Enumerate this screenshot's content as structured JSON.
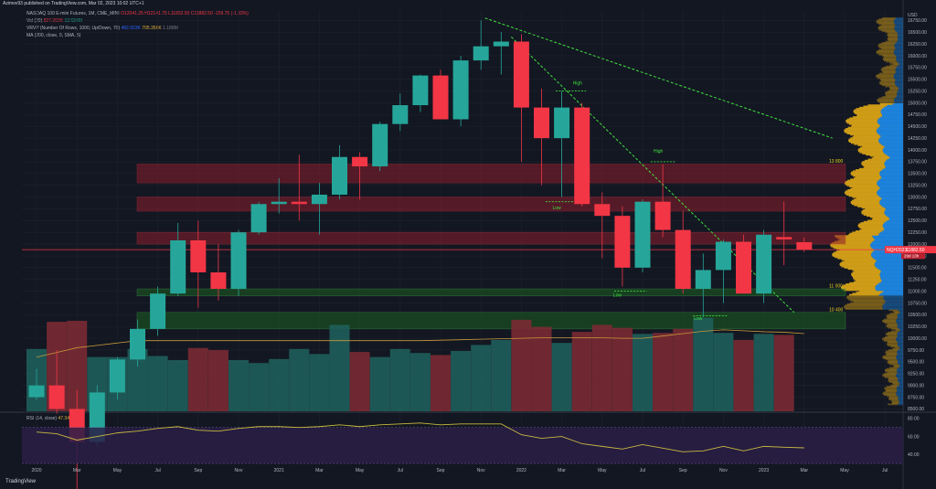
{
  "header": {
    "publisher": "Azimov93 published on TradingView.com, Mar 02, 2023 10:02 UTC+1"
  },
  "legend": {
    "symbol": "NASDAQ 100 E-mini Futures, 1M, CME_MINI",
    "ohlc": {
      "o": "O12041.25",
      "h": "H12141.75",
      "l": "L11832.50",
      "c": "C11882.50",
      "chg": "-159.75 (-1.33%)"
    },
    "vol": {
      "label": "Vol (20)",
      "v1": "827.269K",
      "v2": "12.634M"
    },
    "vrvp": {
      "label": "VRVP (Number Of Rows, 1000, Up/Down, 70)",
      "v1": "482.823K",
      "v2": "705.356K",
      "v3": "1.188M"
    },
    "ma": {
      "label": "MA (200, close, 0, SMA, 5)"
    }
  },
  "rsi": {
    "label": "RSI (14, close)",
    "value": "47.34"
  },
  "price_tag": {
    "symbol": "NQH2023",
    "price": "11882.50",
    "countdown": "29d 13h"
  },
  "brand": {
    "logo_text": "TradingView"
  },
  "colors": {
    "up": "#26a69a",
    "down": "#f23645",
    "zone_red": "#8b1d2c",
    "zone_green": "#1b5e20",
    "trend": "#3ee03e",
    "ma": "#c89a3a",
    "rsi": "#c8b840",
    "profile_up": "#1e88e5",
    "profile_down": "#d4a017"
  },
  "chart_data": [
    {
      "type": "candlestick",
      "title": "NASDAQ 100 E-mini Futures, 1M, CME_MINI",
      "y_ticks": [
        8500,
        8750,
        9000,
        9250,
        9500,
        9750,
        10000,
        10250,
        10500,
        10750,
        11000,
        11250,
        11500,
        11750,
        12000,
        12250,
        12500,
        12750,
        13000,
        13250,
        13500,
        13750,
        14000,
        14250,
        14500,
        14750,
        15000,
        15250,
        15500,
        15750,
        16000,
        16250,
        16500,
        16750
      ],
      "y_unit": "USD",
      "ylim": [
        8450,
        16950
      ],
      "x_ticks": [
        "2020",
        "Mar",
        "May",
        "Jul",
        "Sep",
        "Nov",
        "2021",
        "Mar",
        "May",
        "Jul",
        "Sep",
        "Nov",
        "2022",
        "Mar",
        "May",
        "Jul",
        "Sep",
        "Nov",
        "2023",
        "Mar",
        "May",
        "Jul"
      ],
      "candles": [
        {
          "date": "2020-01",
          "o": 8750,
          "h": 9350,
          "l": 8700,
          "c": 9000
        },
        {
          "date": "2020-02",
          "o": 9000,
          "h": 9750,
          "l": 8400,
          "c": 8500
        },
        {
          "date": "2020-03",
          "o": 8500,
          "h": 8900,
          "l": 6600,
          "c": 7800
        },
        {
          "date": "2020-04",
          "o": 7800,
          "h": 9000,
          "l": 7700,
          "c": 8850
        },
        {
          "date": "2020-05",
          "o": 8850,
          "h": 9600,
          "l": 8700,
          "c": 9550
        },
        {
          "date": "2020-06",
          "o": 9550,
          "h": 10400,
          "l": 9400,
          "c": 10200
        },
        {
          "date": "2020-07",
          "o": 10200,
          "h": 11100,
          "l": 10050,
          "c": 10950
        },
        {
          "date": "2020-08",
          "o": 10950,
          "h": 12450,
          "l": 10900,
          "c": 12080
        },
        {
          "date": "2020-09",
          "o": 12080,
          "h": 12500,
          "l": 10650,
          "c": 11400
        },
        {
          "date": "2020-10",
          "o": 11400,
          "h": 12000,
          "l": 10800,
          "c": 11050
        },
        {
          "date": "2020-11",
          "o": 11050,
          "h": 12300,
          "l": 10900,
          "c": 12250
        },
        {
          "date": "2020-12",
          "o": 12250,
          "h": 12900,
          "l": 12200,
          "c": 12850
        },
        {
          "date": "2021-01",
          "o": 12850,
          "h": 13400,
          "l": 12650,
          "c": 12900
        },
        {
          "date": "2021-02",
          "o": 12900,
          "h": 13900,
          "l": 12500,
          "c": 12850
        },
        {
          "date": "2021-03",
          "o": 12850,
          "h": 13300,
          "l": 12200,
          "c": 13050
        },
        {
          "date": "2021-04",
          "o": 13050,
          "h": 14100,
          "l": 12950,
          "c": 13850
        },
        {
          "date": "2021-05",
          "o": 13850,
          "h": 13950,
          "l": 12950,
          "c": 13650
        },
        {
          "date": "2021-06",
          "o": 13650,
          "h": 14600,
          "l": 13550,
          "c": 14550
        },
        {
          "date": "2021-07",
          "o": 14550,
          "h": 15200,
          "l": 14400,
          "c": 14950
        },
        {
          "date": "2021-08",
          "o": 14950,
          "h": 15600,
          "l": 14800,
          "c": 15580
        },
        {
          "date": "2021-09",
          "o": 15580,
          "h": 15700,
          "l": 14650,
          "c": 14650
        },
        {
          "date": "2021-10",
          "o": 14650,
          "h": 16000,
          "l": 14500,
          "c": 15900
        },
        {
          "date": "2021-11",
          "o": 15900,
          "h": 16750,
          "l": 15700,
          "c": 16200
        },
        {
          "date": "2021-12",
          "o": 16200,
          "h": 16500,
          "l": 15600,
          "c": 16300
        },
        {
          "date": "2022-01",
          "o": 16300,
          "h": 16450,
          "l": 13750,
          "c": 14900
        },
        {
          "date": "2022-02",
          "o": 14900,
          "h": 15300,
          "l": 13250,
          "c": 14250
        },
        {
          "date": "2022-03",
          "o": 14250,
          "h": 15250,
          "l": 13000,
          "c": 14900
        },
        {
          "date": "2022-04",
          "o": 14900,
          "h": 15000,
          "l": 12800,
          "c": 12850
        },
        {
          "date": "2022-05",
          "o": 12850,
          "h": 13100,
          "l": 11700,
          "c": 12600
        },
        {
          "date": "2022-06",
          "o": 12600,
          "h": 12800,
          "l": 11100,
          "c": 11500
        },
        {
          "date": "2022-07",
          "o": 11500,
          "h": 12950,
          "l": 11400,
          "c": 12900
        },
        {
          "date": "2022-08",
          "o": 12900,
          "h": 13700,
          "l": 12150,
          "c": 12300
        },
        {
          "date": "2022-09",
          "o": 12300,
          "h": 12700,
          "l": 10950,
          "c": 11050
        },
        {
          "date": "2022-10",
          "o": 11050,
          "h": 11800,
          "l": 10450,
          "c": 11450
        },
        {
          "date": "2022-11",
          "o": 11450,
          "h": 12100,
          "l": 10750,
          "c": 12050
        },
        {
          "date": "2022-12",
          "o": 12050,
          "h": 12200,
          "l": 10950,
          "c": 10950
        },
        {
          "date": "2023-01",
          "o": 10950,
          "h": 12300,
          "l": 10750,
          "c": 12200
        },
        {
          "date": "2023-02",
          "o": 12150,
          "h": 12900,
          "l": 11550,
          "c": 12100
        },
        {
          "date": "2023-03",
          "o": 12041.25,
          "h": 12141.75,
          "l": 11832.5,
          "c": 11882.5
        }
      ],
      "zones": [
        {
          "top": 13700,
          "bottom": 13300,
          "color": "red",
          "label": "13 800"
        },
        {
          "top": 13000,
          "bottom": 12700,
          "color": "red",
          "label": ""
        },
        {
          "top": 12250,
          "bottom": 12000,
          "color": "red",
          "label": ""
        },
        {
          "top": 11050,
          "bottom": 10900,
          "color": "green",
          "label": "11 000"
        },
        {
          "top": 10550,
          "bottom": 10200,
          "color": "green",
          "label": "10 400"
        }
      ],
      "annotations": [
        {
          "text": "High",
          "date": "2022-03",
          "price": 15350
        },
        {
          "text": "Low",
          "date": "2022-02",
          "price": 12700
        },
        {
          "text": "High",
          "date": "2022-07",
          "price": 13900
        },
        {
          "text": "Low",
          "date": "2022-05",
          "price": 10850
        },
        {
          "text": "Low",
          "date": "2022-09",
          "price": 10350
        }
      ],
      "current_price": 11882.5,
      "ma_line": [
        9600,
        9700,
        9800,
        9850,
        9900,
        9950,
        9950,
        9950,
        9950,
        9950,
        9950,
        9950,
        9950,
        9950,
        9950,
        9950,
        9950,
        9950,
        9950,
        9950,
        9960,
        9970,
        9980,
        9990,
        10000,
        10010,
        10010,
        10010,
        10010,
        10000,
        10000,
        10050,
        10100,
        10150,
        10180,
        10160,
        10140,
        10130,
        10100
      ]
    },
    {
      "type": "bar",
      "title": "Vol (20)",
      "values": [
        0.62,
        0.89,
        0.9,
        0.54,
        0.54,
        0.62,
        0.55,
        0.51,
        0.63,
        0.61,
        0.51,
        0.48,
        0.52,
        0.62,
        0.57,
        0.86,
        0.59,
        0.54,
        0.62,
        0.58,
        0.56,
        0.6,
        0.66,
        0.71,
        0.91,
        0.84,
        0.68,
        0.79,
        0.86,
        0.83,
        0.77,
        0.78,
        0.82,
        0.93,
        0.78,
        0.71,
        0.77,
        0.76,
        0.0
      ],
      "direction": [
        "up",
        "down",
        "down",
        "up",
        "up",
        "up",
        "up",
        "up",
        "down",
        "down",
        "up",
        "up",
        "up",
        "up",
        "up",
        "up",
        "down",
        "up",
        "up",
        "up",
        "down",
        "up",
        "up",
        "up",
        "down",
        "down",
        "up",
        "down",
        "down",
        "down",
        "up",
        "down",
        "down",
        "up",
        "up",
        "down",
        "up",
        "down",
        "down"
      ]
    },
    {
      "type": "line",
      "title": "RSI (14, close)",
      "y_ticks": [
        40,
        60,
        80
      ],
      "ylim": [
        28,
        85
      ],
      "band": [
        30,
        70
      ],
      "values": [
        65,
        63,
        56,
        60,
        64,
        66,
        69,
        71,
        67,
        66,
        69,
        71,
        71,
        70,
        71,
        73,
        71,
        73,
        74,
        75,
        73,
        74,
        74,
        74,
        62,
        58,
        60,
        52,
        49,
        46,
        51,
        47,
        43,
        44,
        49,
        44,
        49,
        48,
        47.34
      ]
    }
  ]
}
